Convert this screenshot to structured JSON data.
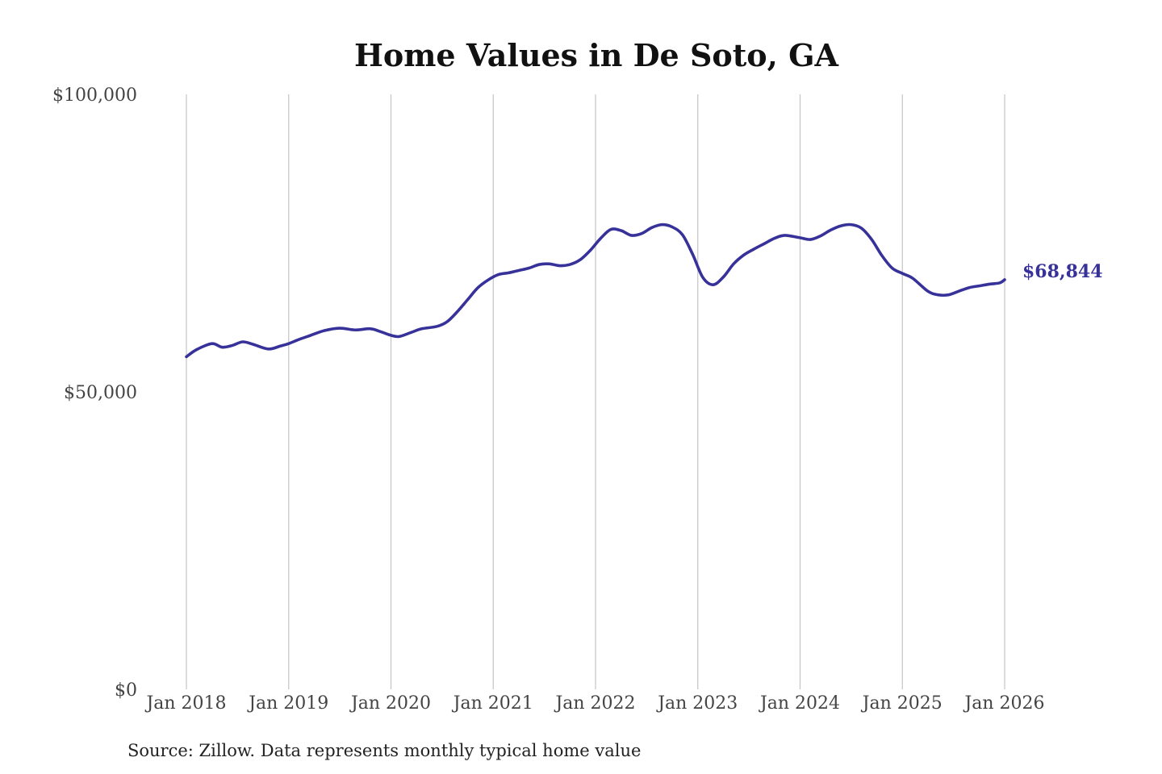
{
  "chart_data": {
    "type": "line",
    "title": "Home Values in De Soto, GA",
    "xlabel": "",
    "ylabel": "",
    "ylim": [
      0,
      100000
    ],
    "grid": "vertical",
    "legend": "none",
    "yticks": [
      {
        "value": 0,
        "label": "$0"
      },
      {
        "value": 50000,
        "label": "$50,000"
      },
      {
        "value": 100000,
        "label": "$100,000"
      }
    ],
    "xticks": [
      {
        "value": 2018,
        "label": "Jan 2018"
      },
      {
        "value": 2019,
        "label": "Jan 2019"
      },
      {
        "value": 2020,
        "label": "Jan 2020"
      },
      {
        "value": 2021,
        "label": "Jan 2021"
      },
      {
        "value": 2022,
        "label": "Jan 2022"
      },
      {
        "value": 2023,
        "label": "Jan 2023"
      },
      {
        "value": 2024,
        "label": "Jan 2024"
      },
      {
        "value": 2025,
        "label": "Jan 2025"
      },
      {
        "value": 2026,
        "label": "Jan 2026"
      }
    ],
    "xlim": [
      2018,
      2026
    ],
    "series": [
      {
        "name": "Typical home value",
        "color": "#37319a",
        "end_label": "$68,844",
        "x": [
          2018.0,
          2018.1,
          2018.25,
          2018.35,
          2018.45,
          2018.55,
          2018.65,
          2018.8,
          2018.92,
          2019.0,
          2019.1,
          2019.2,
          2019.35,
          2019.5,
          2019.65,
          2019.8,
          2019.9,
          2020.0,
          2020.08,
          2020.2,
          2020.3,
          2020.45,
          2020.55,
          2020.65,
          2020.75,
          2020.85,
          2020.95,
          2021.05,
          2021.15,
          2021.25,
          2021.35,
          2021.45,
          2021.55,
          2021.65,
          2021.75,
          2021.85,
          2021.95,
          2022.05,
          2022.15,
          2022.25,
          2022.35,
          2022.45,
          2022.55,
          2022.65,
          2022.75,
          2022.85,
          2022.95,
          2023.05,
          2023.15,
          2023.25,
          2023.35,
          2023.45,
          2023.55,
          2023.65,
          2023.75,
          2023.85,
          2024.0,
          2024.1,
          2024.2,
          2024.3,
          2024.4,
          2024.5,
          2024.6,
          2024.7,
          2024.8,
          2024.9,
          2025.0,
          2025.1,
          2025.25,
          2025.35,
          2025.45,
          2025.55,
          2025.65,
          2025.75,
          2025.85,
          2025.95,
          2026.0
        ],
        "values": [
          55900,
          57100,
          58100,
          57500,
          57800,
          58400,
          58000,
          57200,
          57700,
          58100,
          58800,
          59400,
          60300,
          60700,
          60400,
          60600,
          60100,
          59500,
          59300,
          60000,
          60600,
          61000,
          61800,
          63500,
          65500,
          67500,
          68800,
          69700,
          70000,
          70400,
          70800,
          71400,
          71500,
          71200,
          71400,
          72200,
          73800,
          75800,
          77300,
          77100,
          76300,
          76600,
          77600,
          78100,
          77700,
          76400,
          73100,
          69200,
          68000,
          69300,
          71500,
          73000,
          74000,
          74900,
          75800,
          76300,
          75900,
          75600,
          76200,
          77200,
          77900,
          78100,
          77500,
          75600,
          72900,
          70800,
          69900,
          69100,
          66900,
          66300,
          66300,
          66900,
          67500,
          67800,
          68100,
          68300,
          68844
        ]
      }
    ],
    "source": "Source: Zillow. Data represents monthly typical home value"
  }
}
